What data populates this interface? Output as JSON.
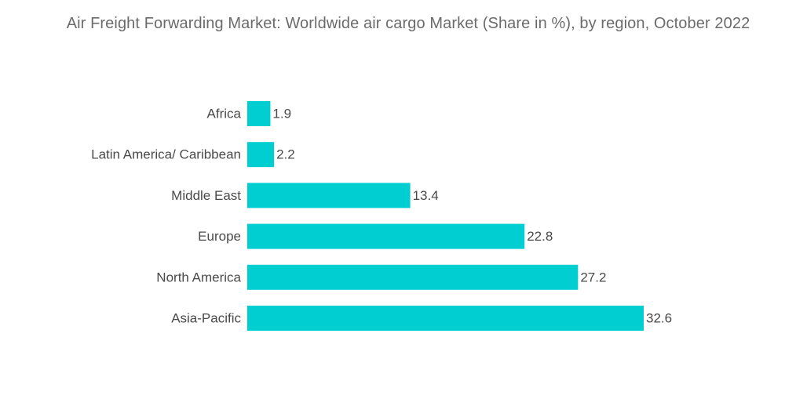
{
  "chart_data": {
    "type": "bar",
    "orientation": "horizontal",
    "title": "Air Freight Forwarding Market: Worldwide air cargo Market (Share in %), by region, October 2022",
    "categories": [
      "Africa",
      "Latin America/ Caribbean",
      "Middle East",
      "Europe",
      "North America",
      "Asia-Pacific"
    ],
    "values": [
      1.9,
      2.2,
      13.4,
      22.8,
      27.2,
      32.6
    ],
    "value_labels": [
      "1.9",
      "2.2",
      "13.4",
      "22.8",
      "27.2",
      "32.6"
    ],
    "xlabel": "",
    "ylabel": "",
    "xlim": [
      0,
      32.6
    ],
    "grid": false,
    "legend": "none",
    "bar_color": "#00ced1"
  }
}
